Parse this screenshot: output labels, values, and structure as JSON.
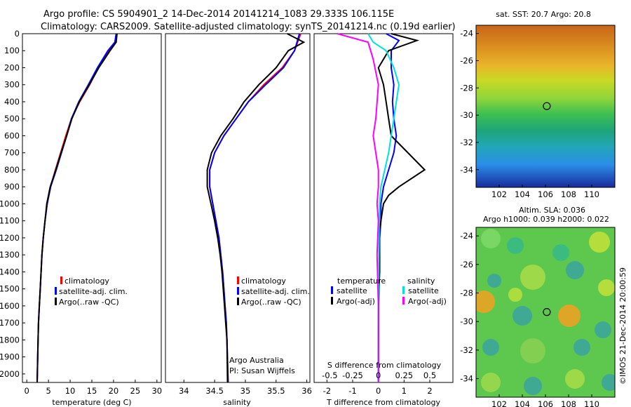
{
  "header": {
    "line1": "Argo profile: CS 5904901_2 14-Dec-2014 20141214_1083 29.333S 106.115E",
    "line2": "Climatology: CARS2009. Satellite-adjusted climatology: synTS_20141214.nc (0.19d earlier)"
  },
  "colors": {
    "climatology": "#ff0000",
    "satellite": "#0000ff",
    "argo": "#000000",
    "salinity_satellite": "#00e0e0",
    "salinity_argo": "#ff00ff"
  },
  "chart_data": [
    {
      "type": "line",
      "id": "temperature",
      "xlabel": "temperature (deg C)",
      "ylabel": "",
      "xlim": [
        -1,
        31
      ],
      "ylim": [
        2050,
        0
      ],
      "xticks": [
        0,
        5,
        10,
        15,
        20,
        25,
        30
      ],
      "yticks": [
        0,
        100,
        200,
        300,
        400,
        500,
        600,
        700,
        800,
        900,
        1000,
        1100,
        1200,
        1300,
        1400,
        1500,
        1600,
        1700,
        1800,
        1900,
        2000
      ],
      "legend": [
        "climatology",
        "satellite-adj. clim.",
        "Argo(..raw -QC)"
      ],
      "series": [
        {
          "name": "climatology",
          "x": [
            20.6,
            20.4,
            19.0,
            16.5,
            14.5,
            12.2,
            10.3,
            9.0,
            7.8,
            6.6,
            5.5,
            4.7,
            4.2,
            3.8,
            3.5,
            3.3,
            3.1,
            2.9,
            2.7,
            2.6,
            2.4
          ],
          "y": [
            0,
            50,
            100,
            200,
            300,
            400,
            500,
            600,
            700,
            800,
            900,
            1000,
            1100,
            1200,
            1300,
            1400,
            1500,
            1600,
            1700,
            1800,
            2050
          ]
        },
        {
          "name": "satellite-adj. clim.",
          "x": [
            20.6,
            20.3,
            18.7,
            16.3,
            14.2,
            12.0,
            10.3,
            9.2,
            8.0,
            6.8,
            5.5,
            4.7,
            4.2,
            3.8,
            3.5,
            3.3,
            3.1,
            2.9,
            2.7,
            2.6,
            2.4
          ],
          "y": [
            0,
            50,
            100,
            200,
            300,
            400,
            500,
            600,
            700,
            800,
            900,
            1000,
            1100,
            1200,
            1300,
            1400,
            1500,
            1600,
            1700,
            1800,
            2050
          ]
        },
        {
          "name": "Argo(..raw -QC)",
          "x": [
            20.8,
            20.6,
            19.2,
            16.6,
            14.4,
            12.1,
            10.4,
            9.2,
            7.9,
            6.7,
            5.4,
            4.6,
            4.2,
            3.8,
            3.5,
            3.3,
            3.1,
            2.9,
            2.7,
            2.6,
            2.4
          ],
          "y": [
            0,
            50,
            100,
            200,
            300,
            400,
            500,
            600,
            700,
            800,
            900,
            1000,
            1100,
            1200,
            1300,
            1400,
            1500,
            1600,
            1700,
            1800,
            2050
          ]
        }
      ]
    },
    {
      "type": "line",
      "id": "salinity",
      "xlabel": "salinity",
      "xlim": [
        33.7,
        36.05
      ],
      "ylim": [
        2050,
        0
      ],
      "xticks": [
        34,
        34.5,
        35,
        35.5,
        36
      ],
      "xticklabels": [
        "34",
        "34.5",
        "35",
        "35.5",
        "36"
      ],
      "legend": [
        "climatology",
        "satellite-adj. clim.",
        "Argo(..raw -QC)"
      ],
      "annotation": [
        "Argo Australia",
        "PI: Susan Wijffels"
      ],
      "series": [
        {
          "name": "climatology",
          "x": [
            35.9,
            35.85,
            35.8,
            35.6,
            35.3,
            35.05,
            34.85,
            34.65,
            34.5,
            34.42,
            34.42,
            34.47,
            34.52,
            34.57,
            34.6,
            34.63,
            34.65,
            34.67,
            34.69,
            34.7,
            34.72
          ],
          "y": [
            0,
            50,
            100,
            200,
            300,
            400,
            500,
            600,
            700,
            800,
            900,
            1000,
            1100,
            1200,
            1300,
            1400,
            1500,
            1600,
            1700,
            1800,
            2050
          ]
        },
        {
          "name": "satellite-adj. clim.",
          "x": [
            35.88,
            35.84,
            35.8,
            35.62,
            35.33,
            35.05,
            34.85,
            34.65,
            34.5,
            34.42,
            34.42,
            34.47,
            34.52,
            34.57,
            34.6,
            34.63,
            34.65,
            34.67,
            34.69,
            34.7,
            34.72
          ],
          "y": [
            0,
            50,
            100,
            200,
            300,
            400,
            500,
            600,
            700,
            800,
            900,
            1000,
            1100,
            1200,
            1300,
            1400,
            1500,
            1600,
            1700,
            1800,
            2050
          ]
        },
        {
          "name": "Argo(..raw -QC)",
          "x": [
            35.68,
            35.95,
            35.7,
            35.5,
            35.22,
            34.98,
            34.8,
            34.6,
            34.45,
            34.38,
            34.38,
            34.44,
            34.5,
            34.55,
            34.59,
            34.62,
            34.64,
            34.66,
            34.68,
            34.7,
            34.71
          ],
          "y": [
            0,
            50,
            100,
            200,
            300,
            400,
            500,
            600,
            700,
            800,
            900,
            1000,
            1100,
            1200,
            1300,
            1400,
            1500,
            1600,
            1700,
            1800,
            2050
          ]
        }
      ]
    },
    {
      "type": "line",
      "id": "difference",
      "xlabel": "T difference from climatology",
      "xlabel_top": "S difference from climatology",
      "xlim": [
        -2.5,
        2.9
      ],
      "ylim": [
        2050,
        0
      ],
      "xticks": [
        -2,
        -1,
        0,
        1,
        2
      ],
      "top_ticks": [
        "-0.5",
        "-0.25",
        "0",
        "0.25",
        "0.5"
      ],
      "legend": {
        "temperature": [
          "satellite",
          "Argo(-adj)"
        ],
        "salinity": [
          "satellite",
          "Argo(-adj)"
        ]
      },
      "series": [
        {
          "name": "temperature satellite",
          "x": [
            0.3,
            0.8,
            0.5,
            0.5,
            0.6,
            0.55,
            0.6,
            0.7,
            0.6,
            0.4,
            0.2,
            0.1,
            0.1,
            0.05,
            0.05,
            0.03,
            0.02,
            0.01,
            0.01,
            0.0
          ],
          "y": [
            0,
            40,
            100,
            200,
            300,
            400,
            500,
            600,
            700,
            800,
            900,
            1000,
            1100,
            1200,
            1300,
            1400,
            1500,
            1600,
            1800,
            2050
          ]
        },
        {
          "name": "temperature Argo(-adj)",
          "x": [
            0.5,
            1.5,
            0.4,
            0.0,
            0.2,
            0.3,
            0.4,
            0.5,
            1.8,
            0.8,
            0.4,
            0.2,
            0.1,
            0.0,
            0.05,
            0.05,
            0.02,
            0.01,
            0.0,
            0.0
          ],
          "y": [
            0,
            40,
            100,
            200,
            300,
            400,
            500,
            600,
            800,
            900,
            950,
            1000,
            1100,
            1200,
            1300,
            1400,
            1500,
            1600,
            1800,
            2050
          ]
        },
        {
          "name": "salinity satellite",
          "x": [
            -0.4,
            -0.2,
            0.3,
            0.6,
            0.8,
            0.7,
            0.6,
            0.5,
            0.4,
            0.25,
            0.1,
            0.05,
            0.02,
            0.01,
            0.0,
            0.0
          ],
          "y": [
            0,
            50,
            100,
            200,
            300,
            400,
            500,
            600,
            700,
            800,
            900,
            1000,
            1200,
            1400,
            1600,
            2050
          ]
        },
        {
          "name": "salinity Argo(-adj)",
          "x": [
            -1.6,
            -0.4,
            -0.2,
            0.0,
            -0.1,
            -0.2,
            -0.1,
            0.0,
            0.0,
            -0.05,
            0.0,
            -0.05,
            0.0,
            0.0
          ],
          "y": [
            0,
            50,
            150,
            300,
            500,
            600,
            700,
            800,
            900,
            1000,
            1100,
            1300,
            1600,
            2050
          ]
        }
      ]
    }
  ],
  "map_top": {
    "title": "sat. SST: 20.7  Argo: 20.8",
    "yticks": [
      "-24",
      "-26",
      "-28",
      "-30",
      "-32",
      "-34"
    ],
    "xticks": [
      "102",
      "104",
      "106",
      "108",
      "110"
    ],
    "lon_range": [
      100,
      112
    ],
    "lat_range": [
      -35.3,
      -23.4
    ],
    "marker": {
      "lon": 106.115,
      "lat": -29.333
    }
  },
  "map_bottom": {
    "title1": "Altim. SLA: 0.036",
    "title2": "Argo h1000: 0.039 h2000: 0.022",
    "yticks": [
      "-24",
      "-26",
      "-28",
      "-30",
      "-32",
      "-34"
    ],
    "xticks": [
      "102",
      "104",
      "106",
      "108",
      "110"
    ],
    "lon_range": [
      100,
      112
    ],
    "lat_range": [
      -35.3,
      -23.4
    ],
    "marker": {
      "lon": 106.115,
      "lat": -29.333
    }
  },
  "credit": "©IMOS 21-Dec-2014 20:00:59"
}
